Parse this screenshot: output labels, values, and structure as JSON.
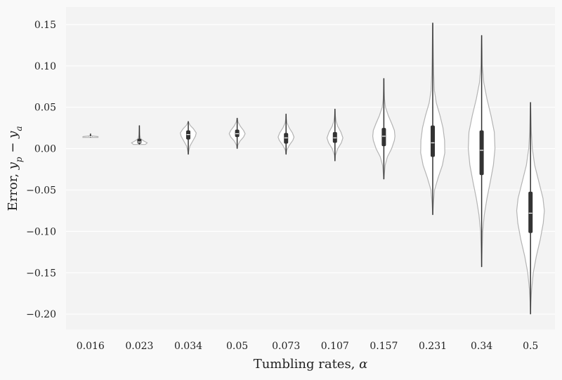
{
  "chart_data": {
    "type": "violin",
    "title": "",
    "xlabel": "Tumbling rates, α",
    "ylabel": "Error, y_p − y_a",
    "ylim": [
      -0.22,
      0.17
    ],
    "yticks": [
      0.15,
      0.1,
      0.05,
      0.0,
      -0.05,
      -0.1,
      -0.15,
      -0.2
    ],
    "ytick_labels": [
      "0.15",
      "0.10",
      "0.05",
      "0.00",
      "−0.05",
      "−0.10",
      "−0.15",
      "−0.20"
    ],
    "grid": true,
    "categories": [
      "0.016",
      "0.023",
      "0.034",
      "0.05",
      "0.073",
      "0.107",
      "0.157",
      "0.231",
      "0.34",
      "0.5"
    ],
    "violins": [
      {
        "category": "0.016",
        "min": 0.0135,
        "max": 0.018,
        "q1": 0.014,
        "median": 0.0145,
        "q3": 0.015,
        "max_halfwidth": 0.155,
        "profile": [
          [
            0.0135,
            1.0
          ],
          [
            0.0145,
            1.0
          ],
          [
            0.0155,
            0.05
          ],
          [
            0.018,
            0.02
          ]
        ]
      },
      {
        "category": "0.023",
        "min": 0.005,
        "max": 0.028,
        "q1": 0.006,
        "median": 0.008,
        "q3": 0.012,
        "max_halfwidth": 0.162,
        "profile": [
          [
            0.005,
            0.75
          ],
          [
            0.007,
            1.0
          ],
          [
            0.009,
            0.6
          ],
          [
            0.012,
            0.15
          ],
          [
            0.016,
            0.06
          ],
          [
            0.022,
            0.03
          ],
          [
            0.028,
            0.0
          ]
        ]
      },
      {
        "category": "0.034",
        "min": -0.007,
        "max": 0.033,
        "q1": 0.011,
        "median": 0.017,
        "q3": 0.022,
        "max_halfwidth": 0.163,
        "profile": [
          [
            -0.007,
            0.0
          ],
          [
            -0.003,
            0.06
          ],
          [
            0.003,
            0.2
          ],
          [
            0.009,
            0.55
          ],
          [
            0.015,
            0.9
          ],
          [
            0.019,
            1.0
          ],
          [
            0.024,
            0.65
          ],
          [
            0.028,
            0.25
          ],
          [
            0.031,
            0.08
          ],
          [
            0.033,
            0.0
          ]
        ]
      },
      {
        "category": "0.05",
        "min": 0.0,
        "max": 0.037,
        "q1": 0.014,
        "median": 0.018,
        "q3": 0.023,
        "max_halfwidth": 0.163,
        "profile": [
          [
            0.0,
            0.0
          ],
          [
            0.004,
            0.08
          ],
          [
            0.009,
            0.35
          ],
          [
            0.014,
            0.8
          ],
          [
            0.018,
            1.0
          ],
          [
            0.022,
            0.8
          ],
          [
            0.027,
            0.4
          ],
          [
            0.032,
            0.12
          ],
          [
            0.037,
            0.0
          ]
        ]
      },
      {
        "category": "0.073",
        "min": -0.007,
        "max": 0.042,
        "q1": 0.006,
        "median": 0.013,
        "q3": 0.019,
        "max_halfwidth": 0.163,
        "profile": [
          [
            -0.007,
            0.0
          ],
          [
            -0.002,
            0.08
          ],
          [
            0.004,
            0.4
          ],
          [
            0.01,
            0.85
          ],
          [
            0.014,
            1.0
          ],
          [
            0.019,
            0.8
          ],
          [
            0.025,
            0.4
          ],
          [
            0.031,
            0.12
          ],
          [
            0.036,
            0.04
          ],
          [
            0.042,
            0.0
          ]
        ]
      },
      {
        "category": "0.107",
        "min": -0.015,
        "max": 0.048,
        "q1": 0.007,
        "median": 0.013,
        "q3": 0.02,
        "max_halfwidth": 0.163,
        "profile": [
          [
            -0.015,
            0.0
          ],
          [
            -0.008,
            0.06
          ],
          [
            0.0,
            0.35
          ],
          [
            0.007,
            0.8
          ],
          [
            0.013,
            1.0
          ],
          [
            0.02,
            0.75
          ],
          [
            0.027,
            0.35
          ],
          [
            0.033,
            0.15
          ],
          [
            0.04,
            0.05
          ],
          [
            0.048,
            0.0
          ]
        ]
      },
      {
        "category": "0.157",
        "min": -0.037,
        "max": 0.085,
        "q1": 0.003,
        "median": 0.015,
        "q3": 0.025,
        "max_halfwidth": 0.227,
        "profile": [
          [
            -0.037,
            0.0
          ],
          [
            -0.03,
            0.05
          ],
          [
            -0.02,
            0.12
          ],
          [
            -0.01,
            0.32
          ],
          [
            0.0,
            0.7
          ],
          [
            0.01,
            0.95
          ],
          [
            0.015,
            1.0
          ],
          [
            0.022,
            0.95
          ],
          [
            0.03,
            0.72
          ],
          [
            0.04,
            0.4
          ],
          [
            0.05,
            0.15
          ],
          [
            0.06,
            0.06
          ],
          [
            0.07,
            0.03
          ],
          [
            0.085,
            0.0
          ]
        ]
      },
      {
        "category": "0.231",
        "min": -0.08,
        "max": 0.152,
        "q1": -0.01,
        "median": 0.007,
        "q3": 0.028,
        "max_halfwidth": 0.247,
        "profile": [
          [
            -0.08,
            0.0
          ],
          [
            -0.065,
            0.06
          ],
          [
            -0.05,
            0.15
          ],
          [
            -0.035,
            0.45
          ],
          [
            -0.02,
            0.8
          ],
          [
            -0.005,
            1.0
          ],
          [
            0.01,
            0.98
          ],
          [
            0.025,
            0.85
          ],
          [
            0.04,
            0.6
          ],
          [
            0.055,
            0.3
          ],
          [
            0.07,
            0.14
          ],
          [
            0.09,
            0.08
          ],
          [
            0.11,
            0.05
          ],
          [
            0.13,
            0.03
          ],
          [
            0.152,
            0.0
          ]
        ]
      },
      {
        "category": "0.34",
        "min": -0.143,
        "max": 0.137,
        "q1": -0.032,
        "median": -0.002,
        "q3": 0.022,
        "max_halfwidth": 0.273,
        "profile": [
          [
            -0.143,
            0.0
          ],
          [
            -0.12,
            0.04
          ],
          [
            -0.1,
            0.08
          ],
          [
            -0.08,
            0.2
          ],
          [
            -0.06,
            0.4
          ],
          [
            -0.04,
            0.65
          ],
          [
            -0.02,
            0.88
          ],
          [
            0.0,
            1.0
          ],
          [
            0.02,
            0.95
          ],
          [
            0.04,
            0.7
          ],
          [
            0.06,
            0.4
          ],
          [
            0.08,
            0.16
          ],
          [
            0.1,
            0.05
          ],
          [
            0.12,
            0.03
          ],
          [
            0.137,
            0.0
          ]
        ]
      },
      {
        "category": "0.5",
        "min": -0.2,
        "max": 0.056,
        "q1": -0.102,
        "median": -0.078,
        "q3": -0.052,
        "max_halfwidth": 0.283,
        "profile": [
          [
            -0.2,
            0.0
          ],
          [
            -0.185,
            0.03
          ],
          [
            -0.17,
            0.08
          ],
          [
            -0.15,
            0.2
          ],
          [
            -0.13,
            0.42
          ],
          [
            -0.11,
            0.7
          ],
          [
            -0.09,
            0.92
          ],
          [
            -0.075,
            1.0
          ],
          [
            -0.06,
            0.9
          ],
          [
            -0.04,
            0.6
          ],
          [
            -0.02,
            0.3
          ],
          [
            0.0,
            0.13
          ],
          [
            0.02,
            0.06
          ],
          [
            0.04,
            0.03
          ],
          [
            0.056,
            0.0
          ]
        ]
      }
    ]
  }
}
